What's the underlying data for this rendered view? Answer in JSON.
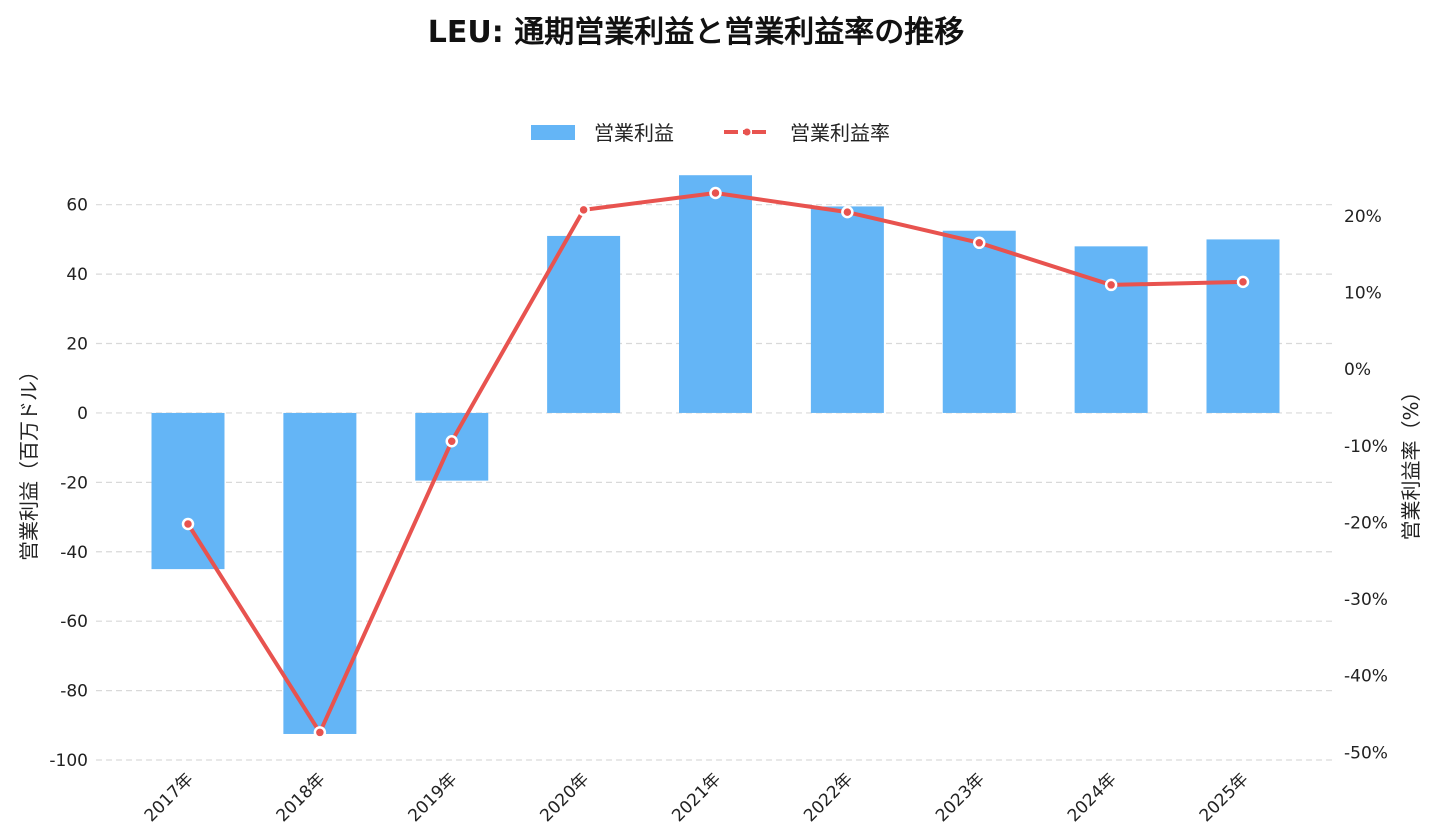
{
  "chart_data": {
    "type": "bar+line",
    "title": "LEU: 通期営業利益と営業利益率の推移",
    "categories": [
      "2017年",
      "2018年",
      "2019年",
      "2020年",
      "2021年",
      "2022年",
      "2023年",
      "2024年",
      "2025年"
    ],
    "series": [
      {
        "name": "営業利益",
        "type": "bar",
        "axis": "left",
        "color": "#64b5f6",
        "values": [
          -45,
          -92.5,
          -19.5,
          51,
          68.5,
          59.5,
          52.5,
          48,
          50
        ]
      },
      {
        "name": "営業利益率",
        "type": "line",
        "axis": "right",
        "color": "#e8534f",
        "values": [
          -20.2,
          -47.4,
          -9.4,
          20.8,
          23.0,
          20.5,
          16.5,
          11.0,
          11.4
        ]
      }
    ],
    "ylabel_left": "営業利益（百万ドル）",
    "ylabel_right": "営業利益率（%）",
    "ylim_left": [
      -100,
      70
    ],
    "ylim_right": [
      -51,
      26
    ],
    "yticks_left": [
      -100,
      -80,
      -60,
      -40,
      -20,
      0,
      20,
      40,
      60
    ],
    "yticks_left_labels": [
      "-100",
      "-80",
      "-60",
      "-40",
      "-20",
      "0",
      "20",
      "40",
      "60"
    ],
    "yticks_right": [
      -50,
      -40,
      -30,
      -20,
      -10,
      0,
      10,
      20
    ],
    "yticks_right_labels": [
      "-50%",
      "-40%",
      "-30%",
      "-20%",
      "-10%",
      "0%",
      "10%",
      "20%"
    ],
    "grid": true,
    "legend_position": "top-center"
  }
}
